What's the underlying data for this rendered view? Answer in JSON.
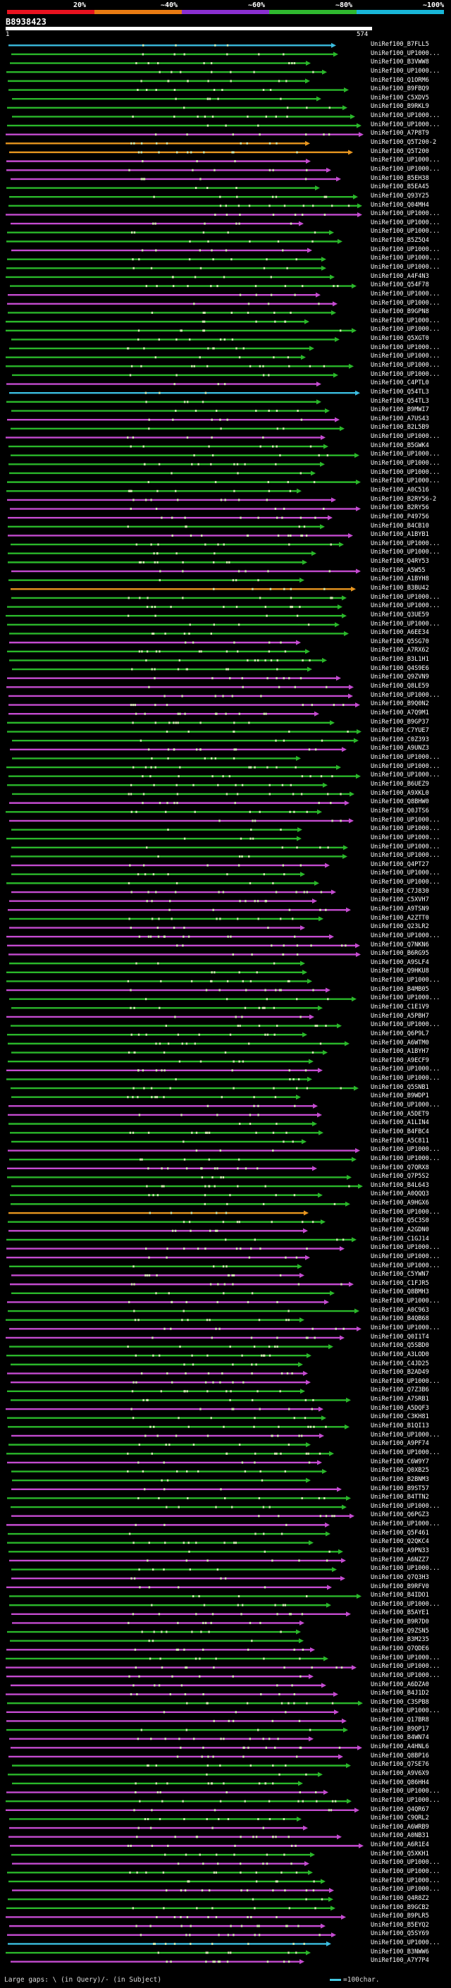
{
  "query": {
    "id": "B8938423",
    "start": "1",
    "end": "574"
  },
  "scale": {
    "segments": [
      {
        "label": "20%",
        "color": "#e8121f"
      },
      {
        "label": "~40%",
        "color": "#e87a12"
      },
      {
        "label": "~60%",
        "color": "#8a2fd0"
      },
      {
        "label": "~80%",
        "color": "#2fb82f"
      },
      {
        "label": "~100%",
        "color": "#19b6d8"
      }
    ]
  },
  "legend": {
    "large_gaps": "Large gaps: \\ (in Query)/- (in Subject)",
    "scale_note": "=100char."
  },
  "colors": {
    "green": "#2ab72a",
    "magenta": "#c44bd0",
    "cyan": "#3bbde0",
    "orange": "#e8961f",
    "dots": "#cfe8b0"
  },
  "hits": [
    {
      "label": "UniRef100_B7FLL5",
      "color": "cyan"
    },
    {
      "label": "UniRef100_UP1000...",
      "color": "green"
    },
    {
      "label": "UniRef100_B3VWW8",
      "color": "green"
    },
    {
      "label": "UniRef100_UP1000...",
      "color": "green"
    },
    {
      "label": "UniRef100_Q1ORM6",
      "color": "green"
    },
    {
      "label": "UniRef100_B9FBQ9",
      "color": "green"
    },
    {
      "label": "UniRef100_C5XDV5",
      "color": "green"
    },
    {
      "label": "UniRef100_B9RKL9",
      "color": "green"
    },
    {
      "label": "UniRef100_UP1000...",
      "color": "green"
    },
    {
      "label": "UniRef100_UP1000...",
      "color": "green"
    },
    {
      "label": "UniRef100_A7P8T9",
      "color": "magenta"
    },
    {
      "label": "UniRef100_Q5T200-2",
      "color": "orange"
    },
    {
      "label": "UniRef100_Q5T200",
      "color": "orange"
    },
    {
      "label": "UniRef100_UP1000...",
      "color": "magenta"
    },
    {
      "label": "UniRef100_UP1000...",
      "color": "magenta"
    },
    {
      "label": "UniRef100_B5EH38",
      "color": "magenta"
    },
    {
      "label": "UniRef100_B5EA45",
      "color": "green"
    },
    {
      "label": "UniRef100_Q93Y25",
      "color": "green"
    },
    {
      "label": "UniRef100_Q04MH4",
      "color": "green"
    },
    {
      "label": "UniRef100_UP1000...",
      "color": "magenta"
    },
    {
      "label": "UniRef100_UP1000...",
      "color": "magenta"
    },
    {
      "label": "UniRef100_UP1000...",
      "color": "green"
    },
    {
      "label": "UniRef100_B5Z5Q4",
      "color": "green"
    },
    {
      "label": "UniRef100_UP1000...",
      "color": "magenta"
    },
    {
      "label": "UniRef100_UP1000...",
      "color": "green"
    },
    {
      "label": "UniRef100_UP1000...",
      "color": "green"
    },
    {
      "label": "UniRef100_A4F4N3",
      "color": "green"
    },
    {
      "label": "UniRef100_Q54F78",
      "color": "green"
    },
    {
      "label": "UniRef100_UP1000...",
      "color": "magenta"
    },
    {
      "label": "UniRef100_UP1000...",
      "color": "magenta"
    },
    {
      "label": "UniRef100_B9GPN8",
      "color": "green"
    },
    {
      "label": "UniRef100_UP1000...",
      "color": "green"
    },
    {
      "label": "UniRef100_UP1000...",
      "color": "green"
    },
    {
      "label": "UniRef100_Q5XGT0",
      "color": "green"
    },
    {
      "label": "UniRef100_UP1000...",
      "color": "green"
    },
    {
      "label": "UniRef100_UP1000...",
      "color": "green"
    },
    {
      "label": "UniRef100_UP1000...",
      "color": "green"
    },
    {
      "label": "UniRef100_UP1000...",
      "color": "green"
    },
    {
      "label": "UniRef100_C4PTL0",
      "color": "magenta"
    },
    {
      "label": "UniRef100_Q54TL3",
      "color": "cyan"
    },
    {
      "label": "UniRef100_Q54TL3",
      "color": "green"
    },
    {
      "label": "UniRef100_B9MWI7",
      "color": "green"
    },
    {
      "label": "UniRef100_A7US43",
      "color": "magenta"
    },
    {
      "label": "UniRef100_B2L5B9",
      "color": "green"
    },
    {
      "label": "UniRef100_UP1000...",
      "color": "magenta"
    },
    {
      "label": "UniRef100_B5GWK4",
      "color": "green"
    },
    {
      "label": "UniRef100_UP1000...",
      "color": "green"
    },
    {
      "label": "UniRef100_UP1000...",
      "color": "green"
    },
    {
      "label": "UniRef100_UP1000...",
      "color": "green"
    },
    {
      "label": "UniRef100_UP1000...",
      "color": "green"
    },
    {
      "label": "UniRef100_A0C516",
      "color": "green"
    },
    {
      "label": "UniRef100_B2RY56-2",
      "color": "magenta"
    },
    {
      "label": "UniRef100_B2RY56",
      "color": "magenta"
    },
    {
      "label": "UniRef100_P49756",
      "color": "magenta"
    },
    {
      "label": "UniRef100_B4CB10",
      "color": "green"
    },
    {
      "label": "UniRef100_A1BYB1",
      "color": "magenta"
    },
    {
      "label": "UniRef100_UP1000...",
      "color": "green"
    },
    {
      "label": "UniRef100_UP1000...",
      "color": "green"
    },
    {
      "label": "UniRef100_Q4RY53",
      "color": "green"
    },
    {
      "label": "UniRef100_A5W55",
      "color": "magenta"
    },
    {
      "label": "UniRef100_A1BYH8",
      "color": "green"
    },
    {
      "label": "UniRef100_B3BU42",
      "color": "orange"
    },
    {
      "label": "UniRef100_UP1000...",
      "color": "green"
    },
    {
      "label": "UniRef100_UP1000...",
      "color": "green"
    },
    {
      "label": "UniRef100_Q3UE59",
      "color": "green"
    },
    {
      "label": "UniRef100_UP1000...",
      "color": "green"
    },
    {
      "label": "UniRef100_A6EE34",
      "color": "green"
    },
    {
      "label": "UniRef100_Q5SG70",
      "color": "magenta"
    },
    {
      "label": "UniRef100_A7RX62",
      "color": "green"
    },
    {
      "label": "UniRef100_B3L1H1",
      "color": "green"
    },
    {
      "label": "UniRef100_Q4S9E6",
      "color": "green"
    },
    {
      "label": "UniRef100_Q9ZVN9",
      "color": "magenta"
    },
    {
      "label": "UniRef100_Q8LE59",
      "color": "magenta"
    },
    {
      "label": "UniRef100_UP1000...",
      "color": "magenta"
    },
    {
      "label": "UniRef100_B9Q0N2",
      "color": "magenta"
    },
    {
      "label": "UniRef100_A7Q9M1",
      "color": "magenta"
    },
    {
      "label": "UniRef100_B9GP37",
      "color": "green"
    },
    {
      "label": "UniRef100_C7YUE7",
      "color": "green"
    },
    {
      "label": "UniRef100_C0Z393",
      "color": "green"
    },
    {
      "label": "UniRef100_A9UNZ3",
      "color": "magenta"
    },
    {
      "label": "UniRef100_UP1000...",
      "color": "green"
    },
    {
      "label": "UniRef100_UP1000...",
      "color": "green"
    },
    {
      "label": "UniRef100_UP1000...",
      "color": "green"
    },
    {
      "label": "UniRef100_B6UEZ9",
      "color": "green"
    },
    {
      "label": "UniRef100_A9XKL0",
      "color": "green"
    },
    {
      "label": "UniRef100_Q8BHW0",
      "color": "magenta"
    },
    {
      "label": "UniRef100_Q0JTS6",
      "color": "green"
    },
    {
      "label": "UniRef100_UP1000...",
      "color": "magenta"
    },
    {
      "label": "UniRef100_UP1000...",
      "color": "green"
    },
    {
      "label": "UniRef100_UP1000...",
      "color": "green"
    },
    {
      "label": "UniRef100_UP1000...",
      "color": "green"
    },
    {
      "label": "UniRef100_UP1000...",
      "color": "green"
    },
    {
      "label": "UniRef100_Q4PT27",
      "color": "magenta"
    },
    {
      "label": "UniRef100_UP1000...",
      "color": "green"
    },
    {
      "label": "UniRef100_UP1000...",
      "color": "green"
    },
    {
      "label": "UniRef100_C7J830",
      "color": "magenta"
    },
    {
      "label": "UniRef100_C5XVH7",
      "color": "magenta"
    },
    {
      "label": "UniRef100_A9TSN9",
      "color": "magenta"
    },
    {
      "label": "UniRef100_A2ZTT0",
      "color": "green"
    },
    {
      "label": "UniRef100_Q23LR2",
      "color": "magenta"
    },
    {
      "label": "UniRef100_UP1000...",
      "color": "magenta"
    },
    {
      "label": "UniRef100_Q7NKN6",
      "color": "magenta"
    },
    {
      "label": "UniRef100_B6RG95",
      "color": "magenta"
    },
    {
      "label": "UniRef100_A9SLF4",
      "color": "green"
    },
    {
      "label": "UniRef100_Q9HKU8",
      "color": "green"
    },
    {
      "label": "UniRef100_UP1000...",
      "color": "green"
    },
    {
      "label": "UniRef100_B4MB05",
      "color": "magenta"
    },
    {
      "label": "UniRef100_UP1000...",
      "color": "green"
    },
    {
      "label": "UniRef100_C1E1V9",
      "color": "green"
    },
    {
      "label": "UniRef100_A5PBH7",
      "color": "magenta"
    },
    {
      "label": "UniRef100_UP1000...",
      "color": "green"
    },
    {
      "label": "UniRef100_Q6P9L7",
      "color": "green"
    },
    {
      "label": "UniRef100_A6WTM0",
      "color": "green"
    },
    {
      "label": "UniRef100_A1BYH7",
      "color": "green"
    },
    {
      "label": "UniRef100_A9ECF9",
      "color": "green"
    },
    {
      "label": "UniRef100_UP1000...",
      "color": "magenta"
    },
    {
      "label": "UniRef100_UP1000...",
      "color": "green"
    },
    {
      "label": "UniRef100_Q5SNB1",
      "color": "green"
    },
    {
      "label": "UniRef100_B9WDP1",
      "color": "green"
    },
    {
      "label": "UniRef100_UP1000...",
      "color": "magenta"
    },
    {
      "label": "UniRef100_A5DET9",
      "color": "magenta"
    },
    {
      "label": "UniRef100_A1LIN4",
      "color": "green"
    },
    {
      "label": "UniRef100_B4FBC4",
      "color": "green"
    },
    {
      "label": "UniRef100_A5C811",
      "color": "green"
    },
    {
      "label": "UniRef100_UP1000...",
      "color": "magenta"
    },
    {
      "label": "UniRef100_UP1000...",
      "color": "green"
    },
    {
      "label": "UniRef100_Q7QRX8",
      "color": "magenta"
    },
    {
      "label": "UniRef100_Q7P5S2",
      "color": "green"
    },
    {
      "label": "UniRef100_B4L643",
      "color": "green"
    },
    {
      "label": "UniRef100_A0QQQ3",
      "color": "green"
    },
    {
      "label": "UniRef100_A9HGX6",
      "color": "green"
    },
    {
      "label": "UniRef100_UP1000...",
      "color": "orange"
    },
    {
      "label": "UniRef100_Q5C3S0",
      "color": "green"
    },
    {
      "label": "UniRef100_A2GDN0",
      "color": "magenta"
    },
    {
      "label": "UniRef100_C1GJ14",
      "color": "green"
    },
    {
      "label": "UniRef100_UP1000...",
      "color": "magenta"
    },
    {
      "label": "UniRef100_UP1000...",
      "color": "magenta"
    },
    {
      "label": "UniRef100_UP1000...",
      "color": "green"
    },
    {
      "label": "UniRef100_C5YWN7",
      "color": "magenta"
    },
    {
      "label": "UniRef100_C1FJR5",
      "color": "magenta"
    },
    {
      "label": "UniRef100_Q8BMH3",
      "color": "green"
    },
    {
      "label": "UniRef100_UP1000...",
      "color": "magenta"
    },
    {
      "label": "UniRef100_A0C963",
      "color": "green"
    },
    {
      "label": "UniRef100_B4QB68",
      "color": "green"
    },
    {
      "label": "UniRef100_UP1000...",
      "color": "magenta"
    },
    {
      "label": "UniRef100_Q0I1T4",
      "color": "magenta"
    },
    {
      "label": "UniRef100_Q5SBD0",
      "color": "green"
    },
    {
      "label": "UniRef100_A3LOD0",
      "color": "green"
    },
    {
      "label": "UniRef100_C4JD25",
      "color": "green"
    },
    {
      "label": "UniRef100_B2AD49",
      "color": "magenta"
    },
    {
      "label": "UniRef100_UP1000...",
      "color": "magenta"
    },
    {
      "label": "UniRef100_Q7Z3B6",
      "color": "green"
    },
    {
      "label": "UniRef100_A7SRB1",
      "color": "green"
    },
    {
      "label": "UniRef100_A5DQF3",
      "color": "magenta"
    },
    {
      "label": "UniRef100_C3KH81",
      "color": "green"
    },
    {
      "label": "UniRef100_B1QI13",
      "color": "green"
    },
    {
      "label": "UniRef100_UP1000...",
      "color": "magenta"
    },
    {
      "label": "UniRef100_A9PF74",
      "color": "green"
    },
    {
      "label": "UniRef100_UP1000...",
      "color": "green"
    },
    {
      "label": "UniRef100_C6W9Y7",
      "color": "magenta"
    },
    {
      "label": "UniRef100_Q0XB25",
      "color": "green"
    },
    {
      "label": "UniRef100_B2BNM3",
      "color": "green"
    },
    {
      "label": "UniRef100_B9ST57",
      "color": "magenta"
    },
    {
      "label": "UniRef100_B4TTN2",
      "color": "green"
    },
    {
      "label": "UniRef100_UP1000...",
      "color": "green"
    },
    {
      "label": "UniRef100_Q6PGZ3",
      "color": "magenta"
    },
    {
      "label": "UniRef100_UP1000...",
      "color": "magenta"
    },
    {
      "label": "UniRef100_Q5F461",
      "color": "green"
    },
    {
      "label": "UniRef100_Q2QKC4",
      "color": "green"
    },
    {
      "label": "UniRef100_A9PN33",
      "color": "green"
    },
    {
      "label": "UniRef100_A6NZZ7",
      "color": "magenta"
    },
    {
      "label": "UniRef100_UP1000...",
      "color": "green"
    },
    {
      "label": "UniRef100_Q7Q3H3",
      "color": "magenta"
    },
    {
      "label": "UniRef100_B9RFV0",
      "color": "magenta"
    },
    {
      "label": "UniRef100_B4IDO1",
      "color": "green"
    },
    {
      "label": "UniRef100_UP1000...",
      "color": "green"
    },
    {
      "label": "UniRef100_B5AYE1",
      "color": "magenta"
    },
    {
      "label": "UniRef100_B9R7D0",
      "color": "magenta"
    },
    {
      "label": "UniRef100_Q9ZSN5",
      "color": "green"
    },
    {
      "label": "UniRef100_B3M235",
      "color": "green"
    },
    {
      "label": "UniRef100_Q7QDE6",
      "color": "magenta"
    },
    {
      "label": "UniRef100_UP1000...",
      "color": "green"
    },
    {
      "label": "UniRef100_UP1000...",
      "color": "magenta"
    },
    {
      "label": "UniRef100_UP1000...",
      "color": "magenta"
    },
    {
      "label": "UniRef100_A6DZA0",
      "color": "magenta"
    },
    {
      "label": "UniRef100_B4J1D2",
      "color": "magenta"
    },
    {
      "label": "UniRef100_C3SPB8",
      "color": "green"
    },
    {
      "label": "UniRef100_UP1000...",
      "color": "magenta"
    },
    {
      "label": "UniRef100_Q17BR8",
      "color": "magenta"
    },
    {
      "label": "UniRef100_B9QP17",
      "color": "green"
    },
    {
      "label": "UniRef100_B4WN74",
      "color": "magenta"
    },
    {
      "label": "UniRef100_A4HNL6",
      "color": "magenta"
    },
    {
      "label": "UniRef100_Q8BP16",
      "color": "magenta"
    },
    {
      "label": "UniRef100_Q7SE76",
      "color": "green"
    },
    {
      "label": "UniRef100_A9V6X9",
      "color": "green"
    },
    {
      "label": "UniRef100_Q86HH4",
      "color": "green"
    },
    {
      "label": "UniRef100_UP1000...",
      "color": "magenta"
    },
    {
      "label": "UniRef100_UP1000...",
      "color": "green"
    },
    {
      "label": "UniRef100_Q4QR67",
      "color": "magenta"
    },
    {
      "label": "UniRef100_C9QRL2",
      "color": "green"
    },
    {
      "label": "UniRef100_A6WRB9",
      "color": "magenta"
    },
    {
      "label": "UniRef100_A0NB31",
      "color": "magenta"
    },
    {
      "label": "UniRef100_A6R1E4",
      "color": "magenta"
    },
    {
      "label": "UniRef100_Q5XKH1",
      "color": "green"
    },
    {
      "label": "UniRef100_UP1000...",
      "color": "magenta"
    },
    {
      "label": "UniRef100_UP1000...",
      "color": "green"
    },
    {
      "label": "UniRef100_UP1000...",
      "color": "green"
    },
    {
      "label": "UniRef100_UP1000...",
      "color": "magenta"
    },
    {
      "label": "UniRef100_Q4R8Z2",
      "color": "green"
    },
    {
      "label": "UniRef100_B9GCB2",
      "color": "green"
    },
    {
      "label": "UniRef100_B9PLR5",
      "color": "magenta"
    },
    {
      "label": "UniRef100_B5EYQ2",
      "color": "magenta"
    },
    {
      "label": "UniRef100_Q5SY69",
      "color": "magenta"
    },
    {
      "label": "UniRef100_UP1000...",
      "color": "cyan"
    },
    {
      "label": "UniRef100_B3NWW6",
      "color": "green"
    },
    {
      "label": "UniRef100_A7Y7P4",
      "color": "magenta"
    }
  ]
}
